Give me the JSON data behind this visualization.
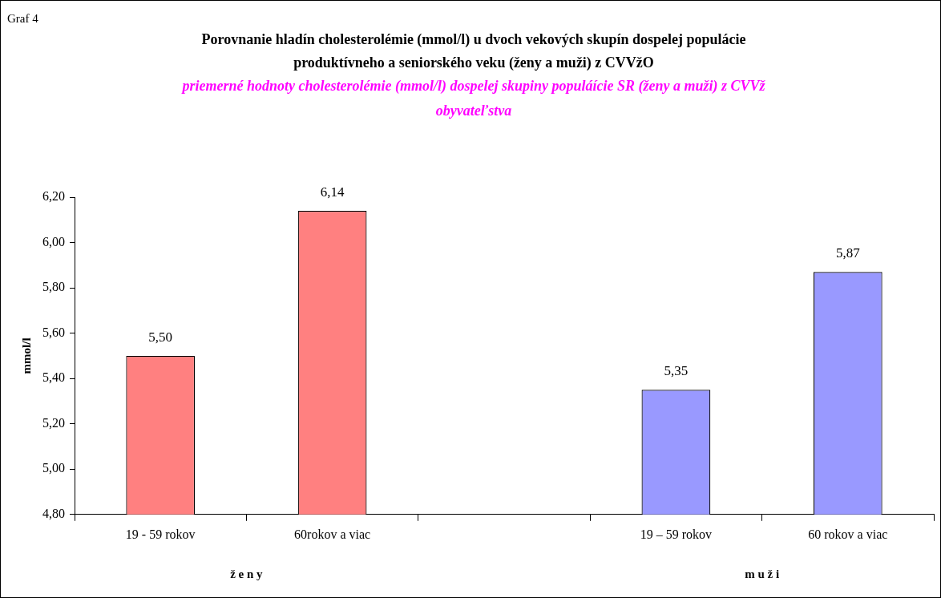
{
  "chart_data": {
    "type": "bar",
    "title": "Porovnanie hladín cholesterolémie (mmol/l) u dvoch vekových skupín dospelej populácie produktívneho a seniorského veku (ženy a muži) z CVVžO",
    "subtitle": "priemerné hodnoty cholesterolémie (mmol/l) dospelej skupiny populáície SR (ženy a muži) z CVVž obyvateľstva",
    "ylabel": "mmol/l",
    "categories": [
      "19 - 59 rokov",
      "60rokov a viac",
      null,
      "19 – 59 rokov",
      "60 rokov a viac"
    ],
    "values": [
      5.5,
      6.14,
      null,
      5.35,
      5.87
    ],
    "colors": [
      "#ff8080",
      "#ff8080",
      null,
      "#9999ff",
      "#9999ff"
    ],
    "value_labels": [
      "5,50",
      "6,14",
      null,
      "5,35",
      "5,87"
    ],
    "ylim": [
      4.8,
      6.2
    ],
    "yticks": [
      {
        "value": 4.8,
        "label": "4,80"
      },
      {
        "value": 5.0,
        "label": "5,00"
      },
      {
        "value": 5.2,
        "label": "5,20"
      },
      {
        "value": 5.4,
        "label": "5,40"
      },
      {
        "value": 5.6,
        "label": "5,60"
      },
      {
        "value": 5.8,
        "label": "5,80"
      },
      {
        "value": 6.0,
        "label": "6,00"
      },
      {
        "value": 6.2,
        "label": "6,20"
      }
    ],
    "grid": false,
    "legend": false,
    "annotations": [
      "Graf 4",
      "ž e n y",
      "m u ž i"
    ]
  }
}
